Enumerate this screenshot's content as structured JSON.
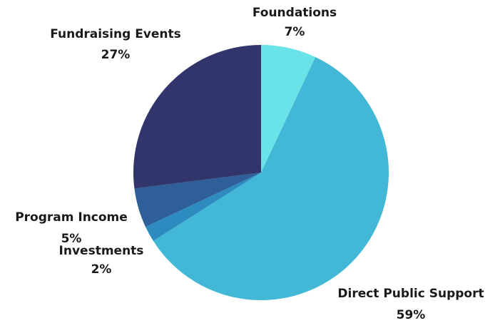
{
  "chart_data": {
    "type": "pie",
    "categories": [
      "Foundations",
      "Direct Public Support",
      "Investments",
      "Program Income",
      "Fundraising Events"
    ],
    "values": [
      7,
      59,
      2,
      5,
      27
    ],
    "value_labels": [
      "7%",
      "59%",
      "2%",
      "5%",
      "27%"
    ],
    "colors": [
      "#6ae3e8",
      "#42b8d6",
      "#2e8bbf",
      "#2e5f99",
      "#31356b"
    ]
  }
}
